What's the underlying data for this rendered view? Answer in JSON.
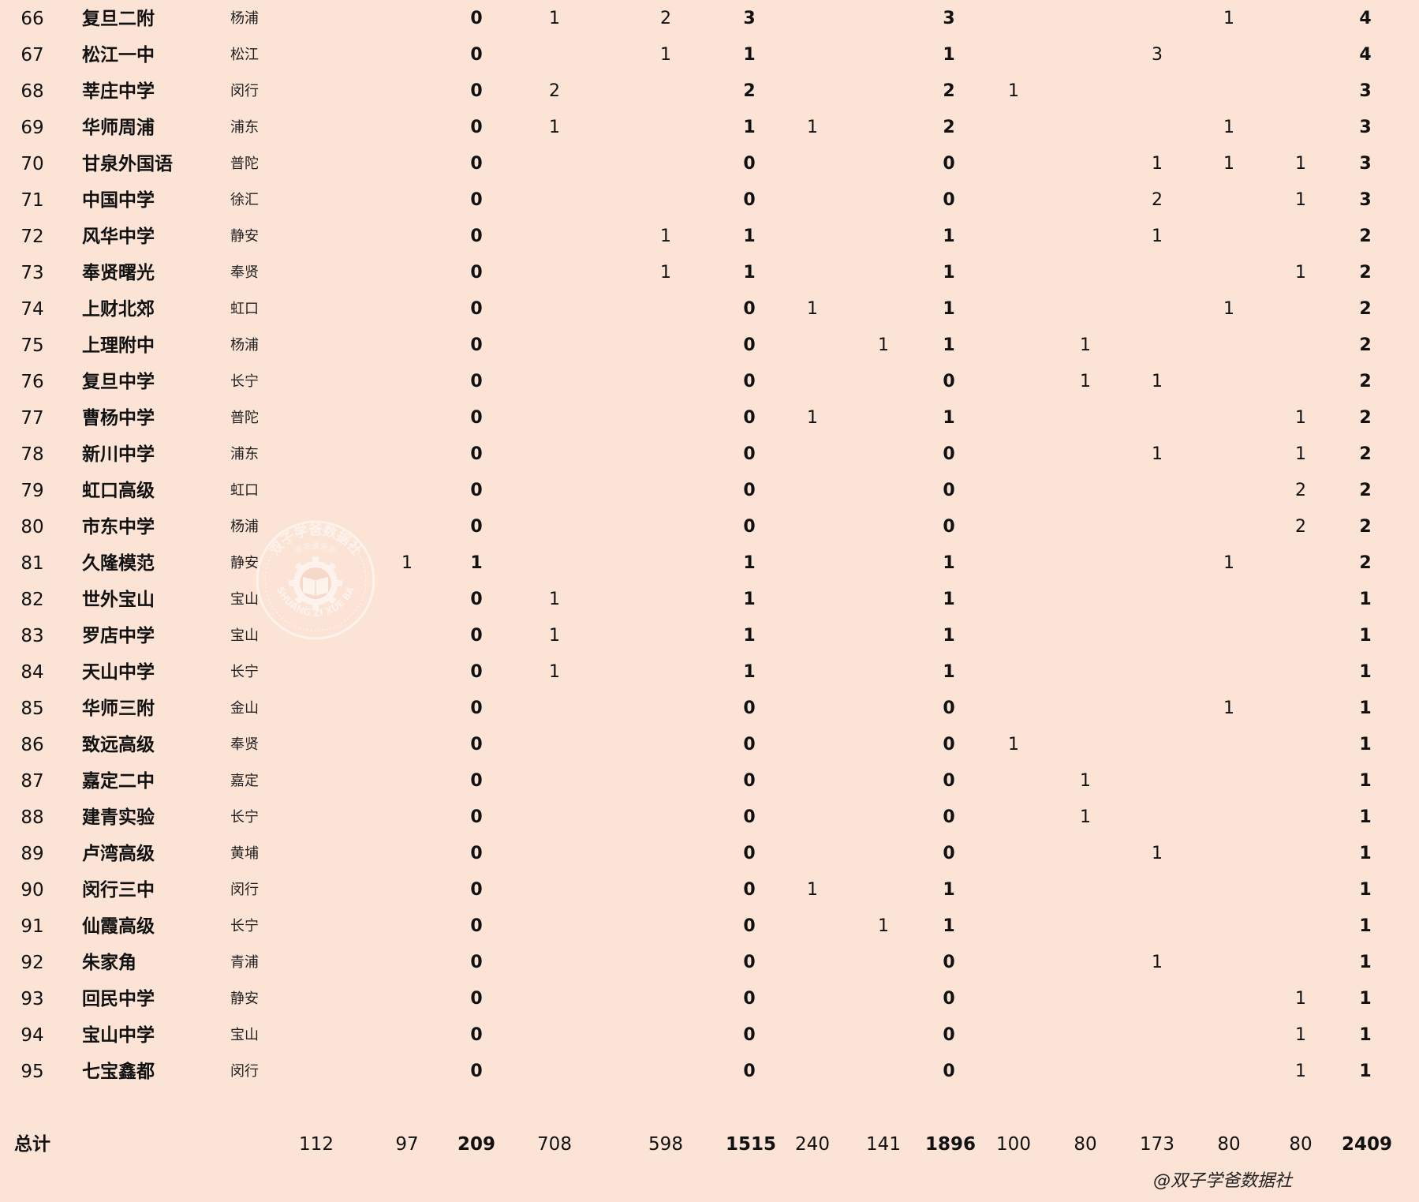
{
  "table": {
    "rows": [
      {
        "rank": "66",
        "name": "复旦二附",
        "district": "杨浦",
        "v": [
          "",
          "",
          "0",
          "1",
          "2",
          "3",
          "",
          "",
          "3",
          "",
          "",
          "",
          "1",
          "",
          "4"
        ]
      },
      {
        "rank": "67",
        "name": "松江一中",
        "district": "松江",
        "v": [
          "",
          "",
          "0",
          "",
          "1",
          "1",
          "",
          "",
          "1",
          "",
          "",
          "3",
          "",
          "",
          "4"
        ]
      },
      {
        "rank": "68",
        "name": "莘庄中学",
        "district": "闵行",
        "v": [
          "",
          "",
          "0",
          "2",
          "",
          "2",
          "",
          "",
          "2",
          "1",
          "",
          "",
          "",
          "",
          "3"
        ]
      },
      {
        "rank": "69",
        "name": "华师周浦",
        "district": "浦东",
        "v": [
          "",
          "",
          "0",
          "1",
          "",
          "1",
          "1",
          "",
          "2",
          "",
          "",
          "",
          "1",
          "",
          "3"
        ]
      },
      {
        "rank": "70",
        "name": "甘泉外国语",
        "district": "普陀",
        "v": [
          "",
          "",
          "0",
          "",
          "",
          "0",
          "",
          "",
          "0",
          "",
          "",
          "1",
          "1",
          "1",
          "3"
        ]
      },
      {
        "rank": "71",
        "name": "中国中学",
        "district": "徐汇",
        "v": [
          "",
          "",
          "0",
          "",
          "",
          "0",
          "",
          "",
          "0",
          "",
          "",
          "2",
          "",
          "1",
          "3"
        ]
      },
      {
        "rank": "72",
        "name": "风华中学",
        "district": "静安",
        "v": [
          "",
          "",
          "0",
          "",
          "1",
          "1",
          "",
          "",
          "1",
          "",
          "",
          "1",
          "",
          "",
          "2"
        ]
      },
      {
        "rank": "73",
        "name": "奉贤曙光",
        "district": "奉贤",
        "v": [
          "",
          "",
          "0",
          "",
          "1",
          "1",
          "",
          "",
          "1",
          "",
          "",
          "",
          "",
          "1",
          "2"
        ]
      },
      {
        "rank": "74",
        "name": "上财北郊",
        "district": "虹口",
        "v": [
          "",
          "",
          "0",
          "",
          "",
          "0",
          "1",
          "",
          "1",
          "",
          "",
          "",
          "1",
          "",
          "2"
        ]
      },
      {
        "rank": "75",
        "name": "上理附中",
        "district": "杨浦",
        "v": [
          "",
          "",
          "0",
          "",
          "",
          "0",
          "",
          "1",
          "1",
          "",
          "1",
          "",
          "",
          "",
          "2"
        ]
      },
      {
        "rank": "76",
        "name": "复旦中学",
        "district": "长宁",
        "v": [
          "",
          "",
          "0",
          "",
          "",
          "0",
          "",
          "",
          "0",
          "",
          "1",
          "1",
          "",
          "",
          "2"
        ]
      },
      {
        "rank": "77",
        "name": "曹杨中学",
        "district": "普陀",
        "v": [
          "",
          "",
          "0",
          "",
          "",
          "0",
          "1",
          "",
          "1",
          "",
          "",
          "",
          "",
          "1",
          "2"
        ]
      },
      {
        "rank": "78",
        "name": "新川中学",
        "district": "浦东",
        "v": [
          "",
          "",
          "0",
          "",
          "",
          "0",
          "",
          "",
          "0",
          "",
          "",
          "1",
          "",
          "1",
          "2"
        ]
      },
      {
        "rank": "79",
        "name": "虹口高级",
        "district": "虹口",
        "v": [
          "",
          "",
          "0",
          "",
          "",
          "0",
          "",
          "",
          "0",
          "",
          "",
          "",
          "",
          "2",
          "2"
        ]
      },
      {
        "rank": "80",
        "name": "市东中学",
        "district": "杨浦",
        "v": [
          "",
          "",
          "0",
          "",
          "",
          "0",
          "",
          "",
          "0",
          "",
          "",
          "",
          "",
          "2",
          "2"
        ]
      },
      {
        "rank": "81",
        "name": "久隆模范",
        "district": "静安",
        "v": [
          "",
          "1",
          "1",
          "",
          "",
          "1",
          "",
          "",
          "1",
          "",
          "",
          "",
          "1",
          "",
          "2"
        ]
      },
      {
        "rank": "82",
        "name": "世外宝山",
        "district": "宝山",
        "v": [
          "",
          "",
          "0",
          "1",
          "",
          "1",
          "",
          "",
          "1",
          "",
          "",
          "",
          "",
          "",
          "1"
        ]
      },
      {
        "rank": "83",
        "name": "罗店中学",
        "district": "宝山",
        "v": [
          "",
          "",
          "0",
          "1",
          "",
          "1",
          "",
          "",
          "1",
          "",
          "",
          "",
          "",
          "",
          "1"
        ]
      },
      {
        "rank": "84",
        "name": "天山中学",
        "district": "长宁",
        "v": [
          "",
          "",
          "0",
          "1",
          "",
          "1",
          "",
          "",
          "1",
          "",
          "",
          "",
          "",
          "",
          "1"
        ]
      },
      {
        "rank": "85",
        "name": "华师三附",
        "district": "金山",
        "v": [
          "",
          "",
          "0",
          "",
          "",
          "0",
          "",
          "",
          "0",
          "",
          "",
          "",
          "1",
          "",
          "1"
        ]
      },
      {
        "rank": "86",
        "name": "致远高级",
        "district": "奉贤",
        "v": [
          "",
          "",
          "0",
          "",
          "",
          "0",
          "",
          "",
          "0",
          "1",
          "",
          "",
          "",
          "",
          "1"
        ]
      },
      {
        "rank": "87",
        "name": "嘉定二中",
        "district": "嘉定",
        "v": [
          "",
          "",
          "0",
          "",
          "",
          "0",
          "",
          "",
          "0",
          "",
          "1",
          "",
          "",
          "",
          "1"
        ]
      },
      {
        "rank": "88",
        "name": "建青实验",
        "district": "长宁",
        "v": [
          "",
          "",
          "0",
          "",
          "",
          "0",
          "",
          "",
          "0",
          "",
          "1",
          "",
          "",
          "",
          "1"
        ]
      },
      {
        "rank": "89",
        "name": "卢湾高级",
        "district": "黄埔",
        "v": [
          "",
          "",
          "0",
          "",
          "",
          "0",
          "",
          "",
          "0",
          "",
          "",
          "1",
          "",
          "",
          "1"
        ]
      },
      {
        "rank": "90",
        "name": "闵行三中",
        "district": "闵行",
        "v": [
          "",
          "",
          "0",
          "",
          "",
          "0",
          "1",
          "",
          "1",
          "",
          "",
          "",
          "",
          "",
          "1"
        ]
      },
      {
        "rank": "91",
        "name": "仙霞高级",
        "district": "长宁",
        "v": [
          "",
          "",
          "0",
          "",
          "",
          "0",
          "",
          "1",
          "1",
          "",
          "",
          "",
          "",
          "",
          "1"
        ]
      },
      {
        "rank": "92",
        "name": "朱家角",
        "district": "青浦",
        "v": [
          "",
          "",
          "0",
          "",
          "",
          "0",
          "",
          "",
          "0",
          "",
          "",
          "1",
          "",
          "",
          "1"
        ]
      },
      {
        "rank": "93",
        "name": "回民中学",
        "district": "静安",
        "v": [
          "",
          "",
          "0",
          "",
          "",
          "0",
          "",
          "",
          "0",
          "",
          "",
          "",
          "",
          "1",
          "1"
        ]
      },
      {
        "rank": "94",
        "name": "宝山中学",
        "district": "宝山",
        "v": [
          "",
          "",
          "0",
          "",
          "",
          "0",
          "",
          "",
          "0",
          "",
          "",
          "",
          "",
          "1",
          "1"
        ]
      },
      {
        "rank": "95",
        "name": "七宝鑫都",
        "district": "闵行",
        "v": [
          "",
          "",
          "0",
          "",
          "",
          "0",
          "",
          "",
          "0",
          "",
          "",
          "",
          "",
          "1",
          "1"
        ]
      }
    ],
    "total": {
      "label": "总计",
      "v": [
        "112",
        "97",
        "209",
        "708",
        "598",
        "1515",
        "240",
        "141",
        "1896",
        "100",
        "80",
        "173",
        "80",
        "80",
        "2409"
      ]
    },
    "bold_columns": [
      2,
      5,
      8,
      14
    ]
  },
  "watermark": {
    "outer_text": "双子学爸数据社",
    "latin_text": "SHUANG ZI XUE BA",
    "inner_text": "学天录天学",
    "icon": "book-gear-seal-icon"
  },
  "footer": {
    "credit": "@双子学爸数据社"
  }
}
